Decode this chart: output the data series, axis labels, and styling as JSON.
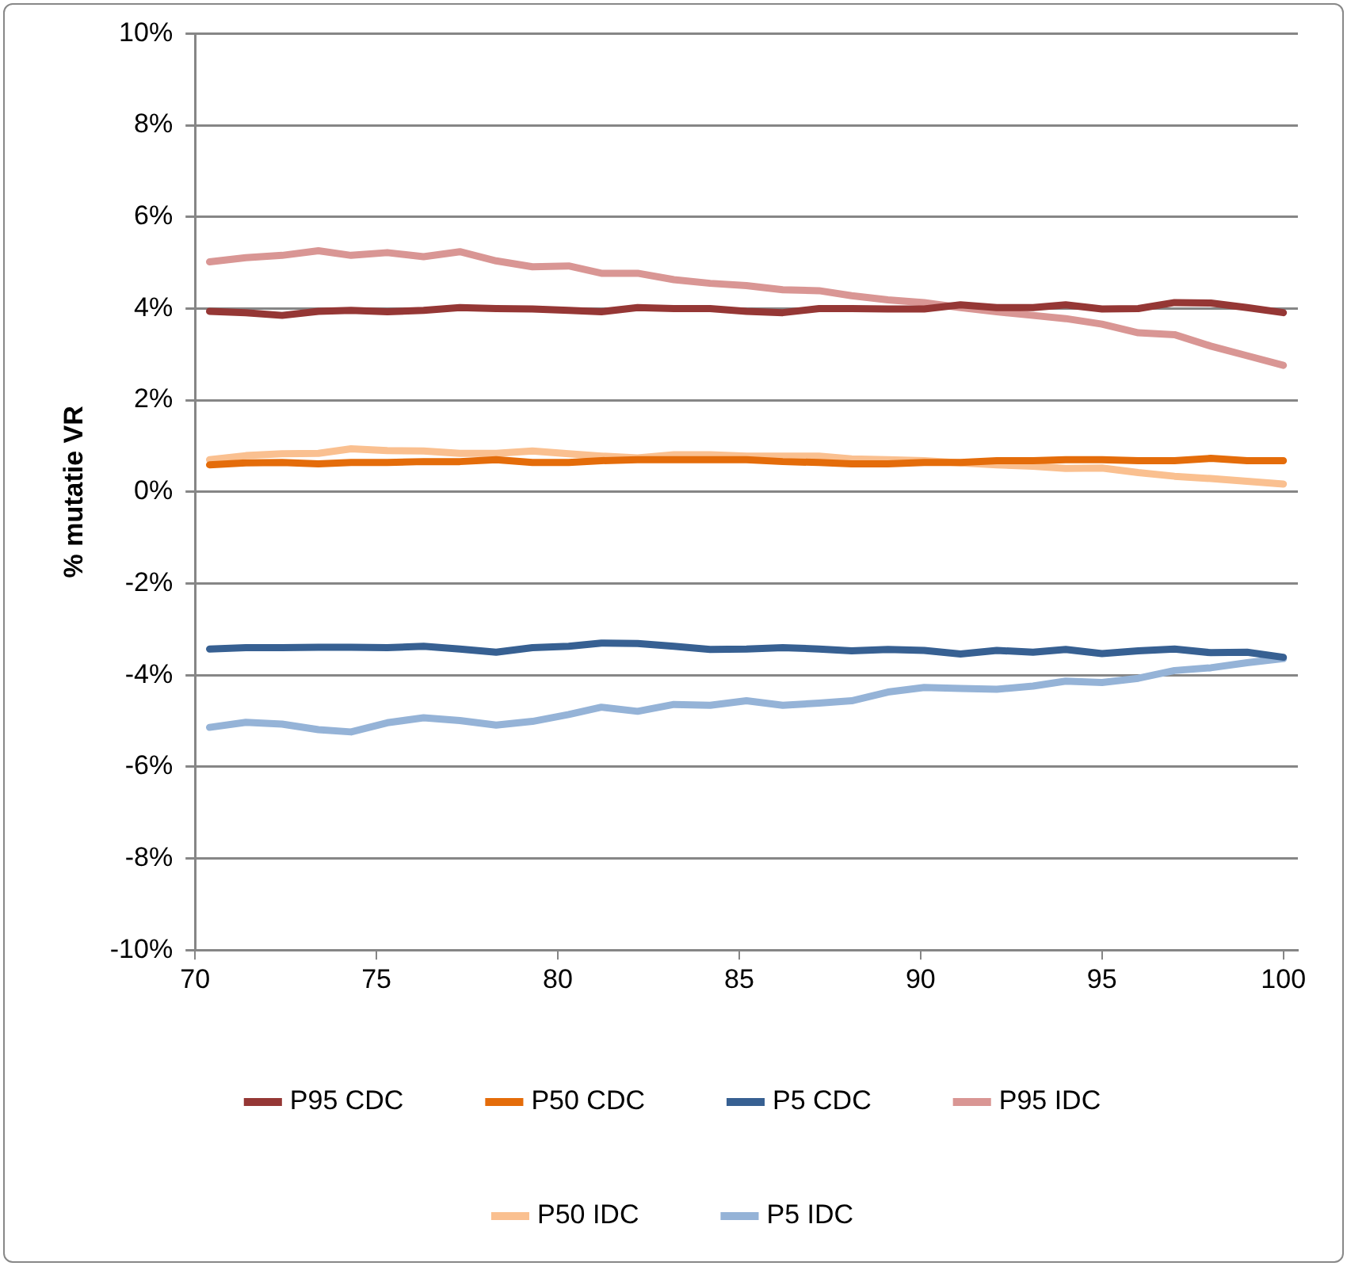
{
  "chart_data": {
    "type": "line",
    "ylabel": "% mutatie VR",
    "x": [
      70.4,
      71.4,
      72.4,
      73.4,
      74.3,
      75.3,
      76.3,
      77.3,
      78.3,
      79.3,
      80.3,
      81.2,
      82.2,
      83.2,
      84.2,
      85.2,
      86.2,
      87.2,
      88.1,
      89.1,
      90.1,
      91.1,
      92.1,
      93.1,
      94.0,
      95.0,
      96.0,
      97.0,
      98.0,
      99.0,
      100.0
    ],
    "series": [
      {
        "name": "P95 CDC",
        "color": "#953735",
        "values": [
          3.94,
          3.91,
          3.85,
          3.94,
          3.96,
          3.93,
          3.96,
          4.02,
          4.0,
          3.99,
          3.96,
          3.93,
          4.02,
          4.0,
          4.0,
          3.94,
          3.91,
          4.0,
          4.0,
          3.99,
          3.99,
          4.08,
          4.02,
          4.02,
          4.08,
          3.99,
          4.0,
          4.13,
          4.12,
          4.02,
          3.91
        ]
      },
      {
        "name": "P50 CDC",
        "color": "#e46c0a",
        "values": [
          0.59,
          0.63,
          0.64,
          0.61,
          0.64,
          0.64,
          0.66,
          0.66,
          0.7,
          0.64,
          0.64,
          0.68,
          0.7,
          0.7,
          0.7,
          0.7,
          0.66,
          0.64,
          0.61,
          0.61,
          0.64,
          0.64,
          0.68,
          0.68,
          0.7,
          0.7,
          0.68,
          0.68,
          0.73,
          0.68,
          0.68
        ]
      },
      {
        "name": "P5 CDC",
        "color": "#376092",
        "values": [
          -3.43,
          -3.4,
          -3.4,
          -3.39,
          -3.39,
          -3.4,
          -3.37,
          -3.43,
          -3.5,
          -3.4,
          -3.37,
          -3.3,
          -3.31,
          -3.37,
          -3.44,
          -3.43,
          -3.4,
          -3.43,
          -3.47,
          -3.44,
          -3.46,
          -3.54,
          -3.46,
          -3.5,
          -3.44,
          -3.53,
          -3.47,
          -3.43,
          -3.51,
          -3.5,
          -3.61
        ]
      },
      {
        "name": "P95 IDC",
        "color": "#d99694",
        "values": [
          5.02,
          5.11,
          5.16,
          5.26,
          5.16,
          5.22,
          5.13,
          5.24,
          5.04,
          4.91,
          4.93,
          4.77,
          4.77,
          4.63,
          4.55,
          4.5,
          4.41,
          4.39,
          4.28,
          4.19,
          4.13,
          4.02,
          3.93,
          3.85,
          3.78,
          3.66,
          3.47,
          3.43,
          3.18,
          2.97,
          2.76
        ]
      },
      {
        "name": "P50 IDC",
        "color": "#fac090",
        "values": [
          0.7,
          0.79,
          0.83,
          0.84,
          0.94,
          0.9,
          0.89,
          0.84,
          0.84,
          0.89,
          0.83,
          0.78,
          0.74,
          0.81,
          0.81,
          0.78,
          0.78,
          0.78,
          0.72,
          0.7,
          0.68,
          0.63,
          0.59,
          0.56,
          0.51,
          0.52,
          0.42,
          0.34,
          0.29,
          0.23,
          0.17
        ]
      },
      {
        "name": "P5 IDC",
        "color": "#95b3d7",
        "values": [
          -5.14,
          -5.03,
          -5.07,
          -5.19,
          -5.24,
          -5.04,
          -4.93,
          -4.99,
          -5.09,
          -5.01,
          -4.86,
          -4.7,
          -4.79,
          -4.64,
          -4.66,
          -4.56,
          -4.66,
          -4.61,
          -4.56,
          -4.37,
          -4.27,
          -4.29,
          -4.31,
          -4.24,
          -4.13,
          -4.16,
          -4.07,
          -3.9,
          -3.84,
          -3.73,
          -3.64
        ]
      }
    ],
    "xlim": [
      70,
      100.4
    ],
    "xticks": [
      70,
      75,
      80,
      85,
      90,
      95,
      100
    ],
    "ylim": [
      -10,
      10
    ],
    "yticks": [
      {
        "value": -10,
        "label": "-10%"
      },
      {
        "value": -8,
        "label": "-8%"
      },
      {
        "value": -6,
        "label": "-6%"
      },
      {
        "value": -4,
        "label": "-4%"
      },
      {
        "value": -2,
        "label": "-2%"
      },
      {
        "value": 0,
        "label": "0%"
      },
      {
        "value": 2,
        "label": "2%"
      },
      {
        "value": 4,
        "label": "4%"
      },
      {
        "value": 6,
        "label": "6%"
      },
      {
        "value": 8,
        "label": "8%"
      },
      {
        "value": 10,
        "label": "10%"
      }
    ],
    "grid": "y",
    "legend": "bottom",
    "marker": "none",
    "line_style": "solid"
  }
}
